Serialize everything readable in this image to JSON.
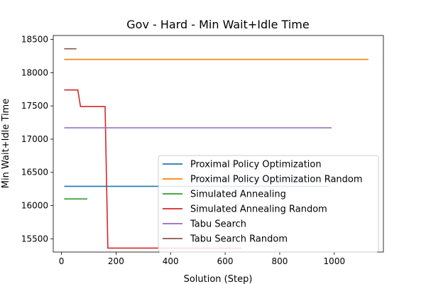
{
  "chart_data": {
    "type": "line",
    "title": "Gov - Hard - Min Wait+Idle Time",
    "xlabel": "Solution (Step)",
    "ylabel": "Min Wait+Idle Time",
    "xlim": [
      -30,
      1180
    ],
    "ylim": [
      15300,
      18560
    ],
    "x_ticks": [
      0,
      200,
      400,
      600,
      800,
      1000
    ],
    "y_ticks": [
      15500,
      16000,
      16500,
      17000,
      17500,
      18000,
      18500
    ],
    "grid": false,
    "legend_position": "lower-right",
    "series": [
      {
        "name": "Proximal Policy Optimization",
        "color": "#1f77b4",
        "x": [
          10,
          980
        ],
        "y": [
          16290,
          16290
        ]
      },
      {
        "name": "Proximal Policy Optimization Random",
        "color": "#ff7f0e",
        "x": [
          10,
          1125
        ],
        "y": [
          18200,
          18200
        ]
      },
      {
        "name": "Simulated Annealing",
        "color": "#2ca02c",
        "x": [
          10,
          95
        ],
        "y": [
          16100,
          16100
        ]
      },
      {
        "name": "Simulated Annealing Random",
        "color": "#d62728",
        "x": [
          10,
          60,
          70,
          160,
          170,
          660
        ],
        "y": [
          17740,
          17740,
          17490,
          17490,
          15360,
          15360
        ]
      },
      {
        "name": "Tabu Search",
        "color": "#9467bd",
        "x": [
          10,
          990
        ],
        "y": [
          17170,
          17170
        ]
      },
      {
        "name": "Tabu Search Random",
        "color": "#8c564b",
        "x": [
          10,
          55
        ],
        "y": [
          18360,
          18360
        ]
      }
    ]
  }
}
